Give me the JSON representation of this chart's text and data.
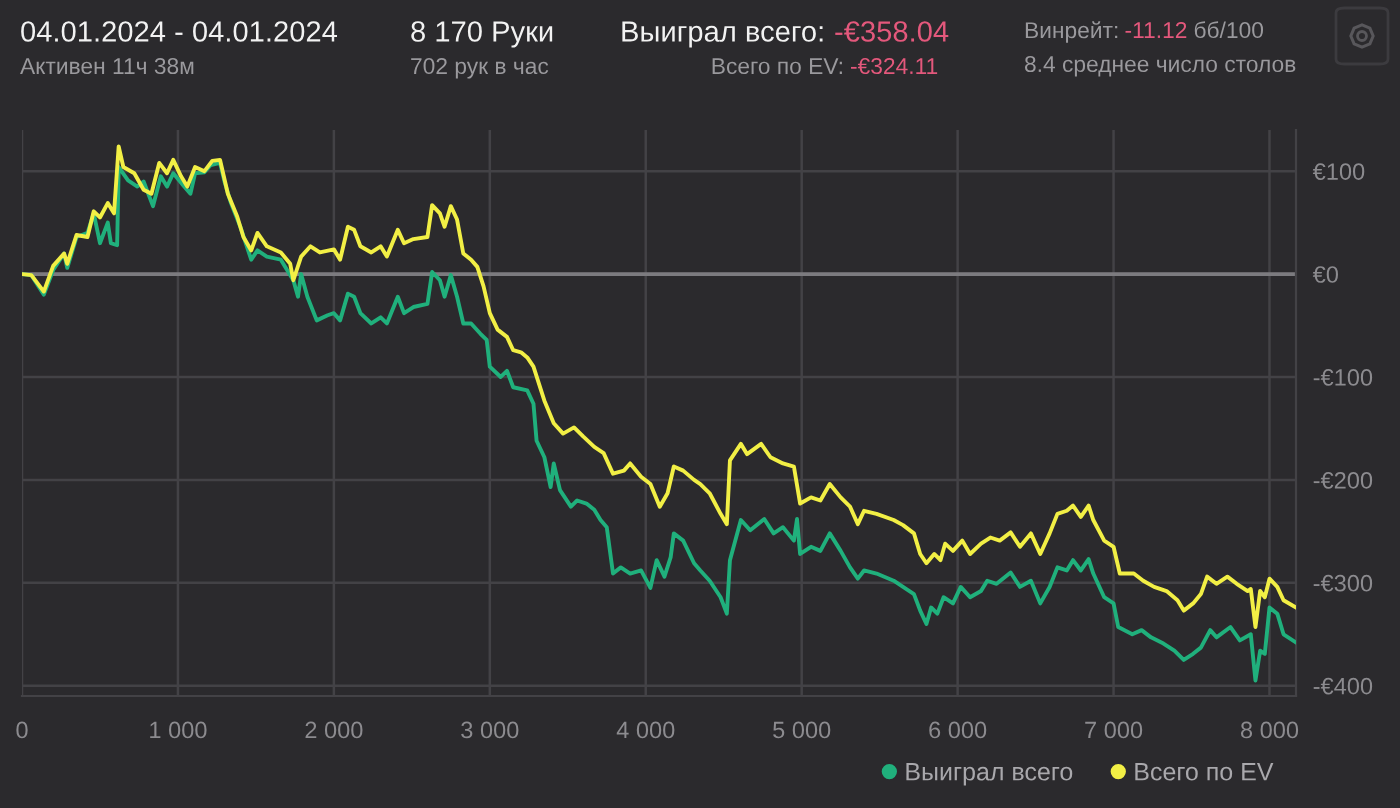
{
  "chart_data": {
    "type": "line",
    "title": "04.01.2024 - 04.01.2024",
    "annotations": [
      "Активен 11ч 38м",
      "8 170 Руки",
      "702 рук в час",
      "Выиграл всего:",
      "-€358.04",
      "Всего по EV:",
      "-€324.11",
      "Винрейт:",
      "-11.12",
      "бб/100",
      "8.4 среднее число столов"
    ],
    "xlim": [
      0,
      8170
    ],
    "xticks": [
      0,
      {
        "value": 1000,
        "label": "1 000"
      },
      {
        "value": 2000,
        "label": "2 000"
      },
      {
        "value": 3000,
        "label": "3 000"
      },
      {
        "value": 4000,
        "label": "4 000"
      },
      {
        "value": 5000,
        "label": "5 000"
      },
      {
        "value": 6000,
        "label": "6 000"
      },
      {
        "value": 7000,
        "label": "7 000"
      },
      {
        "value": 8000,
        "label": "8 000"
      }
    ],
    "ylim": [
      -410,
      140
    ],
    "yticks": [
      {
        "value": 100,
        "label": "€100"
      },
      {
        "value": 0,
        "label": "€0"
      },
      {
        "value": -100,
        "label": "-€100"
      },
      {
        "value": -200,
        "label": "-€200"
      },
      {
        "value": -300,
        "label": "-€300"
      },
      {
        "value": -400,
        "label": "-€400"
      }
    ],
    "grid": true,
    "legend": "bottom right",
    "line_style": "solid",
    "ref_lines": [
      {
        "axis": "y",
        "value": 0,
        "color": "#7c7b7f"
      }
    ],
    "series": [
      {
        "name": "Выиграл всего",
        "color": "#20b07c",
        "x": [
          0,
          60,
          140,
          200,
          270,
          290,
          350,
          420,
          460,
          500,
          550,
          570,
          610,
          620,
          680,
          740,
          780,
          840,
          890,
          930,
          970,
          1040,
          1080,
          1110,
          1170,
          1210,
          1270,
          1300,
          1340,
          1400,
          1470,
          1510,
          1570,
          1660,
          1740,
          1770,
          1790,
          1830,
          1890,
          1960,
          2000,
          2040,
          2090,
          2130,
          2170,
          2240,
          2300,
          2340,
          2410,
          2450,
          2510,
          2600,
          2630,
          2680,
          2710,
          2750,
          2790,
          2830,
          2880,
          2940,
          2980,
          3000,
          3070,
          3110,
          3150,
          3240,
          3280,
          3300,
          3350,
          3390,
          3410,
          3450,
          3520,
          3560,
          3620,
          3670,
          3710,
          3750,
          3790,
          3840,
          3900,
          3970,
          4030,
          4070,
          4120,
          4160,
          4180,
          4240,
          4310,
          4350,
          4410,
          4480,
          4520,
          4540,
          4610,
          4670,
          4760,
          4820,
          4880,
          4950,
          4970,
          4990,
          5060,
          5120,
          5180,
          5250,
          5310,
          5360,
          5400,
          5480,
          5590,
          5650,
          5720,
          5760,
          5800,
          5830,
          5870,
          5910,
          5970,
          6020,
          6080,
          6150,
          6190,
          6250,
          6340,
          6400,
          6470,
          6530,
          6590,
          6640,
          6700,
          6740,
          6790,
          6840,
          6870,
          6940,
          7000,
          7030,
          7120,
          7180,
          7240,
          7320,
          7390,
          7450,
          7510,
          7560,
          7620,
          7660,
          7750,
          7810,
          7880,
          7910,
          7940,
          7970,
          8000,
          8050,
          8090,
          8170
        ],
        "values": [
          0,
          -1,
          -20,
          4,
          20,
          6,
          36,
          40,
          59,
          30,
          50,
          30,
          28,
          104,
          91,
          85,
          90,
          66,
          95,
          85,
          98,
          85,
          78,
          98,
          99,
          106,
          108,
          89,
          69,
          46,
          14,
          23,
          17,
          14,
          -6,
          -22,
          0,
          -22,
          -45,
          -40,
          -38,
          -45,
          -19,
          -22,
          -38,
          -48,
          -42,
          -48,
          -22,
          -38,
          -32,
          -29,
          2,
          -6,
          -22,
          -1,
          -22,
          -48,
          -48,
          -58,
          -64,
          -90,
          -100,
          -94,
          -110,
          -113,
          -126,
          -162,
          -178,
          -207,
          -184,
          -210,
          -226,
          -220,
          -223,
          -229,
          -239,
          -246,
          -291,
          -285,
          -291,
          -288,
          -305,
          -278,
          -294,
          -275,
          -252,
          -259,
          -281,
          -288,
          -298,
          -314,
          -330,
          -278,
          -239,
          -249,
          -238,
          -252,
          -246,
          -259,
          -238,
          -272,
          -265,
          -269,
          -252,
          -269,
          -285,
          -296,
          -288,
          -291,
          -298,
          -304,
          -311,
          -327,
          -340,
          -324,
          -330,
          -314,
          -320,
          -304,
          -314,
          -308,
          -298,
          -301,
          -290,
          -304,
          -298,
          -320,
          -304,
          -285,
          -288,
          -278,
          -288,
          -277,
          -291,
          -314,
          -320,
          -343,
          -350,
          -346,
          -353,
          -359,
          -366,
          -375,
          -369,
          -363,
          -346,
          -353,
          -343,
          -356,
          -350,
          -395,
          -366,
          -369,
          -324,
          -330,
          -350,
          -358
        ]
      },
      {
        "name": "Всего по EV",
        "color": "#f2ef45",
        "x": [
          0,
          60,
          140,
          200,
          270,
          290,
          350,
          420,
          460,
          500,
          550,
          590,
          620,
          650,
          720,
          780,
          830,
          880,
          930,
          970,
          1020,
          1060,
          1110,
          1170,
          1220,
          1270,
          1320,
          1380,
          1420,
          1470,
          1510,
          1570,
          1660,
          1720,
          1740,
          1790,
          1850,
          1910,
          2000,
          2040,
          2090,
          2130,
          2170,
          2240,
          2300,
          2340,
          2410,
          2450,
          2510,
          2600,
          2630,
          2680,
          2710,
          2750,
          2790,
          2830,
          2880,
          2920,
          2960,
          3000,
          3050,
          3110,
          3150,
          3200,
          3240,
          3280,
          3350,
          3410,
          3470,
          3540,
          3600,
          3670,
          3730,
          3790,
          3860,
          3900,
          3970,
          4030,
          4090,
          4140,
          4180,
          4240,
          4310,
          4350,
          4410,
          4480,
          4520,
          4540,
          4610,
          4650,
          4740,
          4800,
          4880,
          4950,
          4990,
          5060,
          5120,
          5180,
          5250,
          5310,
          5360,
          5400,
          5480,
          5590,
          5650,
          5720,
          5760,
          5800,
          5850,
          5890,
          5920,
          5970,
          6030,
          6080,
          6150,
          6210,
          6270,
          6340,
          6400,
          6470,
          6530,
          6590,
          6640,
          6700,
          6740,
          6790,
          6840,
          6870,
          6940,
          7000,
          7040,
          7130,
          7190,
          7260,
          7340,
          7410,
          7450,
          7510,
          7560,
          7600,
          7660,
          7730,
          7790,
          7860,
          7880,
          7910,
          7940,
          7970,
          8000,
          8050,
          8090,
          8170
        ],
        "values": [
          0,
          -1,
          -17,
          8,
          20,
          10,
          38,
          36,
          61,
          55,
          69,
          59,
          124,
          104,
          98,
          82,
          78,
          108,
          98,
          111,
          95,
          85,
          104,
          100,
          110,
          111,
          78,
          56,
          36,
          23,
          40,
          27,
          21,
          10,
          -6,
          17,
          27,
          21,
          24,
          14,
          46,
          43,
          27,
          21,
          27,
          17,
          43,
          30,
          34,
          36,
          67,
          59,
          46,
          66,
          53,
          20,
          14,
          7,
          -12,
          -38,
          -54,
          -61,
          -74,
          -76,
          -81,
          -90,
          -123,
          -145,
          -155,
          -149,
          -158,
          -168,
          -174,
          -194,
          -191,
          -184,
          -197,
          -204,
          -226,
          -213,
          -187,
          -191,
          -200,
          -204,
          -213,
          -233,
          -243,
          -181,
          -165,
          -175,
          -165,
          -178,
          -184,
          -187,
          -223,
          -217,
          -220,
          -204,
          -217,
          -226,
          -243,
          -230,
          -233,
          -239,
          -244,
          -252,
          -272,
          -281,
          -272,
          -278,
          -262,
          -269,
          -259,
          -272,
          -262,
          -256,
          -259,
          -251,
          -265,
          -252,
          -272,
          -252,
          -233,
          -230,
          -225,
          -236,
          -225,
          -239,
          -259,
          -265,
          -291,
          -291,
          -298,
          -304,
          -308,
          -317,
          -327,
          -320,
          -311,
          -294,
          -301,
          -294,
          -301,
          -308,
          -306,
          -343,
          -308,
          -314,
          -296,
          -304,
          -317,
          -324
        ]
      }
    ]
  }
}
